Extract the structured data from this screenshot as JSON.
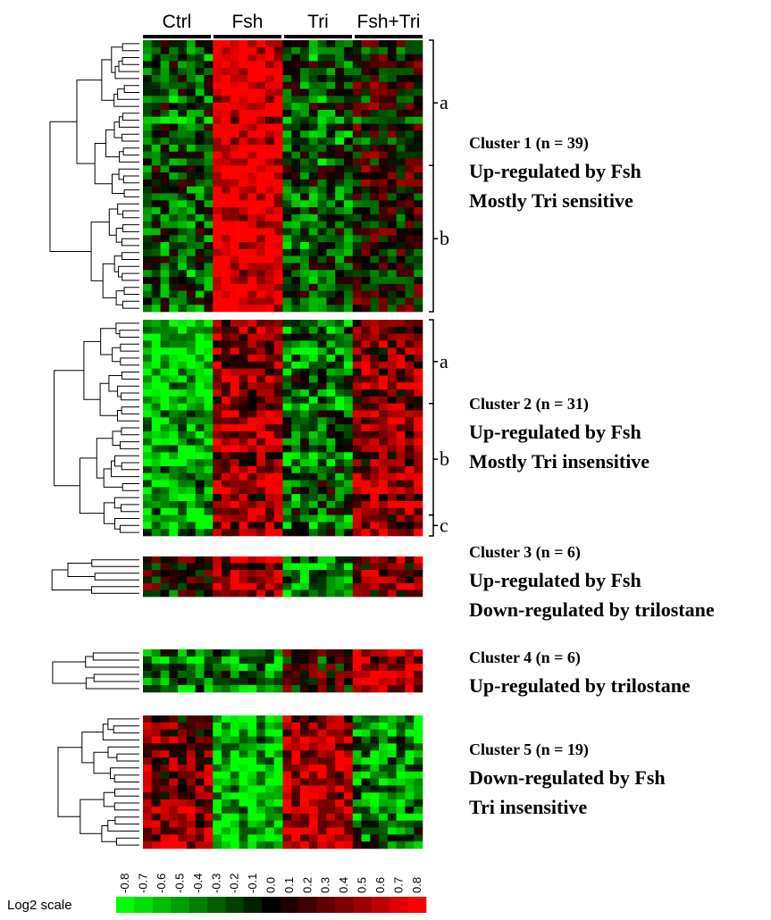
{
  "columns": [
    {
      "label": "Ctrl"
    },
    {
      "label": "Fsh"
    },
    {
      "label": "Tri"
    },
    {
      "label": "Fsh+Tri"
    }
  ],
  "clusters": [
    {
      "title": "Cluster 1 (n = 39)",
      "lines": [
        "Up-regulated by Fsh",
        "Mostly Tri sensitive"
      ],
      "rows": 39,
      "profile": [
        -0.3,
        0.75,
        -0.3,
        0.0
      ],
      "subclusters": [
        {
          "label": "a",
          "rows": 18
        },
        {
          "label": "b",
          "rows": 21
        }
      ]
    },
    {
      "title": "Cluster 2 (n = 31)",
      "lines": [
        "Up-regulated by Fsh",
        "Mostly Tri insensitive"
      ],
      "rows": 31,
      "profile": [
        -0.6,
        0.5,
        -0.35,
        0.45
      ],
      "subclusters": [
        {
          "label": "a",
          "rows": 12
        },
        {
          "label": "b",
          "rows": 16
        },
        {
          "label": "c",
          "rows": 3
        }
      ]
    },
    {
      "title": "Cluster 3 (n = 6)",
      "lines": [
        "Up-regulated by Fsh",
        "Down-regulated by trilostane"
      ],
      "rows": 6,
      "profile": [
        -0.05,
        0.45,
        -0.5,
        0.3
      ],
      "subclusters": []
    },
    {
      "title": "Cluster 4 (n = 6)",
      "lines": [
        "Up-regulated by trilostane"
      ],
      "rows": 6,
      "profile": [
        -0.45,
        -0.4,
        0.05,
        0.6
      ],
      "subclusters": []
    },
    {
      "title": "Cluster 5 (n = 19)",
      "lines": [
        "Down-regulated by Fsh",
        "Tri insensitive"
      ],
      "rows": 19,
      "profile": [
        0.35,
        -0.6,
        0.55,
        -0.45
      ],
      "subclusters": []
    }
  ],
  "scale": {
    "title": "Log2 scale",
    "ticks": [
      "-0.8",
      "-0.7",
      "-0.6",
      "-0.5",
      "-0.4",
      "-0.3",
      "-0.2",
      "-0.1",
      "0.0",
      "0.1",
      "0.2",
      "0.3",
      "0.4",
      "0.5",
      "0.6",
      "0.7",
      "0.8"
    ],
    "low_color": "#00ff00",
    "mid_color": "#000000",
    "high_color": "#ff0000"
  },
  "colors": {
    "low": "#00ff00",
    "mid": "#000000",
    "high": "#ff0000",
    "tree": "#000000"
  }
}
